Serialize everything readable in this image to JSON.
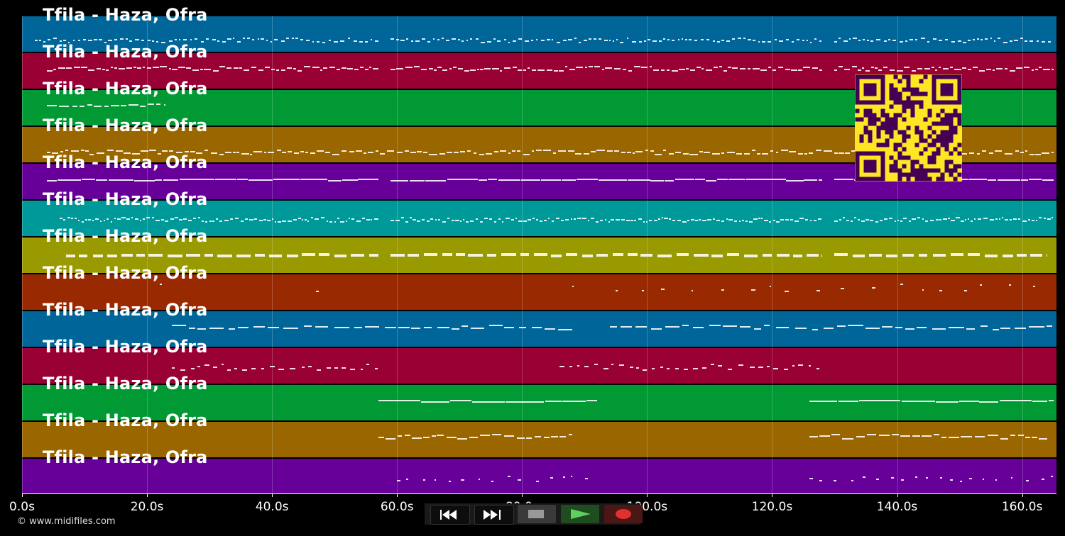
{
  "tracks": [
    {
      "title": "Tfila - Haza, Ofra",
      "color": "#006699"
    },
    {
      "title": "Tfila - Haza, Ofra",
      "color": "#990033"
    },
    {
      "title": "Tfila - Haza, Ofra",
      "color": "#009933"
    },
    {
      "title": "Tfila - Haza, Ofra",
      "color": "#996600"
    },
    {
      "title": "Tfila - Haza, Ofra",
      "color": "#660099"
    },
    {
      "title": "Tfila - Haza, Ofra",
      "color": "#009999"
    },
    {
      "title": "Tfila - Haza, Ofra",
      "color": "#999900"
    },
    {
      "title": "Tfila - Haza, Ofra",
      "color": "#992900"
    },
    {
      "title": "Tfila - Haza, Ofra",
      "color": "#006699"
    },
    {
      "title": "Tfila - Haza, Ofra",
      "color": "#990033"
    },
    {
      "title": "Tfila - Haza, Ofra",
      "color": "#009933"
    },
    {
      "title": "Tfila - Haza, Ofra",
      "color": "#996600"
    },
    {
      "title": "Tfila - Haza, Ofra",
      "color": "#660099"
    }
  ],
  "timeline": {
    "max_seconds": 165.5,
    "ticks": [
      "0.0s",
      "20.0s",
      "40.0s",
      "60.0s",
      "80.0s",
      "100.0s",
      "120.0s",
      "140.0s",
      "160.0s"
    ]
  },
  "copyright": "© www.midifiles.com",
  "controls": [
    {
      "name": "rewind-button",
      "icon": "rewind-icon"
    },
    {
      "name": "fast-forward-button",
      "icon": "fast-forward-icon"
    },
    {
      "name": "stop-button",
      "icon": "stop-icon"
    },
    {
      "name": "play-button",
      "icon": "play-icon"
    },
    {
      "name": "record-button",
      "icon": "record-icon"
    }
  ],
  "qr_code": {
    "color": "#fde725",
    "module_color": "#440154"
  }
}
